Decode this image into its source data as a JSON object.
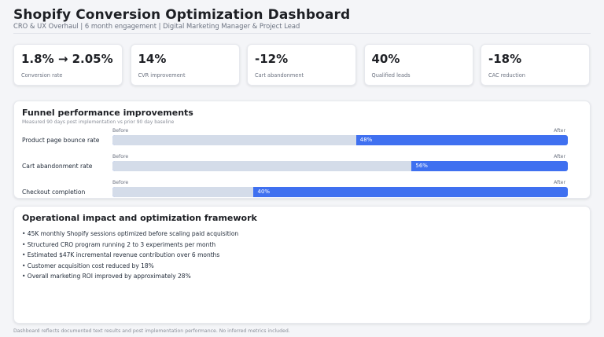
{
  "header": {
    "title": "Shopify Conversion Optimization Dashboard",
    "subtitle": "CRO & UX Overhaul | 6 month engagement | Digital Marketing Manager & Project Lead"
  },
  "kpis": [
    {
      "value": "1.8% → 2.05%",
      "label": "Conversion rate"
    },
    {
      "value": "14%",
      "label": "CVR improvement"
    },
    {
      "value": "-12%",
      "label": "Cart abandonment"
    },
    {
      "value": "40%",
      "label": "Qualified leads"
    },
    {
      "value": "-18%",
      "label": "CAC reduction"
    }
  ],
  "funnel": {
    "title": "Funnel performance improvements",
    "subtitle": "Measured 90 days post implementation vs prior 90 day baseline",
    "rows": [
      {
        "label": "Product page bounce rate",
        "before_label": "Before",
        "after_label": "After",
        "value_text": "48%",
        "before_fraction": 0.535
      },
      {
        "label": "Cart abandonment rate",
        "before_label": "Before",
        "after_label": "After",
        "value_text": "56%",
        "before_fraction": 0.657
      },
      {
        "label": "Checkout completion",
        "before_label": "Before",
        "after_label": "After",
        "value_text": "40%",
        "before_fraction": 0.31
      }
    ]
  },
  "operations": {
    "title": "Operational impact and optimization framework",
    "bullets": [
      "• 45K monthly Shopify sessions optimized before scaling paid acquisition",
      "• Structured CRO program running 2 to 3 experiments per month",
      "• Estimated $47K incremental revenue contribution over 6 months",
      "• Customer acquisition cost reduced by 18%",
      "• Overall marketing ROI improved by approximately 28%"
    ]
  },
  "footer": {
    "note": "Dashboard reflects documented text results and post implementation performance. No inferred metrics included."
  },
  "colors": {
    "accent": "#3f70f0",
    "before_fill": "#d4dce9",
    "background": "#f4f5f8",
    "card": "#ffffff"
  }
}
